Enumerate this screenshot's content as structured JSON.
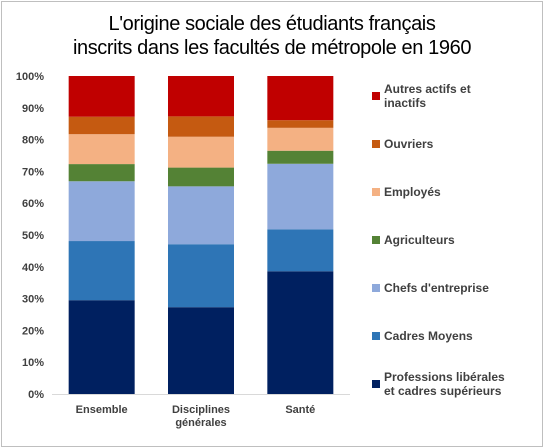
{
  "chart_data": {
    "type": "bar",
    "stacked": true,
    "title_lines": [
      "L'origine sociale des étudiants français",
      "inscrits dans les facultés de métropole en 1960"
    ],
    "xlabel": "",
    "ylabel": "",
    "ylim": [
      0,
      100
    ],
    "y_ticks": [
      "0%",
      "10%",
      "20%",
      "30%",
      "40%",
      "50%",
      "60%",
      "70%",
      "80%",
      "90%",
      "100%"
    ],
    "categories": [
      [
        "Ensemble"
      ],
      [
        "Disciplines",
        "générales"
      ],
      [
        "Santé"
      ]
    ],
    "grid": false,
    "legend_position": "right",
    "series": [
      {
        "name": [
          "Professions libérales",
          "et cadres supérieurs"
        ],
        "color": "#002060",
        "values": [
          29.5,
          27.3,
          38.6
        ]
      },
      {
        "name": [
          "Cadres Moyens"
        ],
        "color": "#2E75B6",
        "values": [
          18.6,
          19.8,
          13.2
        ]
      },
      {
        "name": [
          "Chefs d'entreprise"
        ],
        "color": "#8EA9DB",
        "values": [
          18.8,
          18.2,
          20.6
        ]
      },
      {
        "name": [
          "Agriculteurs"
        ],
        "color": "#548235",
        "values": [
          5.4,
          5.9,
          4.1
        ]
      },
      {
        "name": [
          "Employés"
        ],
        "color": "#F4B183",
        "values": [
          9.4,
          9.7,
          7.2
        ]
      },
      {
        "name": [
          "Ouvriers"
        ],
        "color": "#C55A11",
        "values": [
          5.5,
          6.4,
          2.4
        ]
      },
      {
        "name": [
          "Autres actifs et",
          "inactifs"
        ],
        "color": "#C00000",
        "values": [
          12.8,
          12.7,
          13.9
        ]
      }
    ]
  }
}
